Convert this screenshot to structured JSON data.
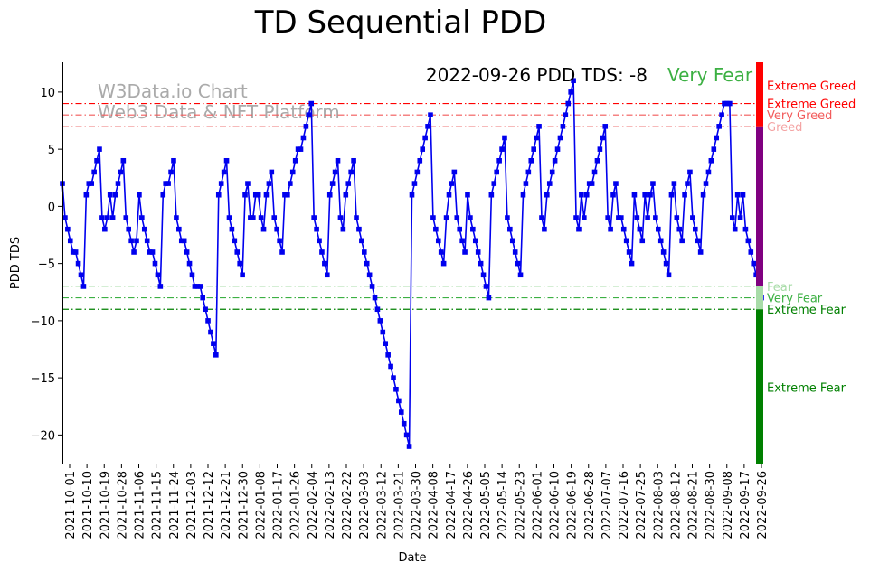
{
  "chart_data": {
    "type": "line",
    "title": "TD Sequential PDD",
    "xlabel": "Date",
    "ylabel": "PDD TDS",
    "ylim": [
      -22.5,
      12.6
    ],
    "yticks": [
      10,
      5,
      0,
      -5,
      -10,
      -15,
      -20
    ],
    "xticks": [
      "2021-10-01",
      "2021-10-10",
      "2021-10-19",
      "2021-10-28",
      "2021-11-06",
      "2021-11-15",
      "2021-11-24",
      "2021-12-03",
      "2021-12-12",
      "2021-12-21",
      "2021-12-30",
      "2022-01-08",
      "2022-01-17",
      "2022-01-26",
      "2022-02-04",
      "2022-02-13",
      "2022-02-22",
      "2022-03-03",
      "2022-03-12",
      "2022-03-21",
      "2022-03-30",
      "2022-04-08",
      "2022-04-17",
      "2022-04-26",
      "2022-05-05",
      "2022-05-14",
      "2022-05-23",
      "2022-06-01",
      "2022-06-10",
      "2022-06-19",
      "2022-06-28",
      "2022-07-07",
      "2022-07-16",
      "2022-07-25",
      "2022-08-03",
      "2022-08-12",
      "2022-08-21",
      "2022-08-30",
      "2022-09-08",
      "2022-09-17",
      "2022-09-26"
    ],
    "annotation": "2022-09-26 PDD TDS: -8",
    "status_label": "Very Fear",
    "status_color": "#3cb043",
    "watermark": [
      "W3Data.io Chart",
      "Web3 Data & NFT Platform"
    ],
    "series": [
      {
        "color": "#0000ee",
        "marker": "square",
        "values": [
          2,
          -1,
          -2,
          -3,
          -4,
          -4,
          -5,
          -6,
          -7,
          1,
          2,
          2,
          3,
          4,
          5,
          -1,
          -2,
          -1,
          1,
          -1,
          1,
          2,
          3,
          4,
          -1,
          -2,
          -3,
          -4,
          -3,
          1,
          -1,
          -2,
          -3,
          -4,
          -4,
          -5,
          -6,
          -7,
          1,
          2,
          2,
          3,
          4,
          -1,
          -2,
          -3,
          -3,
          -4,
          -5,
          -6,
          -7,
          -7,
          -7,
          -8,
          -9,
          -10,
          -11,
          -12,
          -13,
          1,
          2,
          3,
          4,
          -1,
          -2,
          -3,
          -4,
          -5,
          -6,
          1,
          2,
          -1,
          -1,
          1,
          1,
          -1,
          -2,
          1,
          2,
          3,
          -1,
          -2,
          -3,
          -4,
          1,
          1,
          2,
          3,
          4,
          5,
          5,
          6,
          7,
          8,
          9,
          -1,
          -2,
          -3,
          -4,
          -5,
          -6,
          1,
          2,
          3,
          4,
          -1,
          -2,
          1,
          2,
          3,
          4,
          -1,
          -2,
          -3,
          -4,
          -5,
          -6,
          -7,
          -8,
          -9,
          -10,
          -11,
          -12,
          -13,
          -14,
          -15,
          -16,
          -17,
          -18,
          -19,
          -20,
          -21,
          1,
          2,
          3,
          4,
          5,
          6,
          7,
          8,
          -1,
          -2,
          -3,
          -4,
          -5,
          -1,
          1,
          2,
          3,
          -1,
          -2,
          -3,
          -4,
          1,
          -1,
          -2,
          -3,
          -4,
          -5,
          -6,
          -7,
          -8,
          1,
          2,
          3,
          4,
          5,
          6,
          -1,
          -2,
          -3,
          -4,
          -5,
          -6,
          1,
          2,
          3,
          4,
          5,
          6,
          7,
          -1,
          -2,
          1,
          2,
          3,
          4,
          5,
          6,
          7,
          8,
          9,
          10,
          11,
          -1,
          -2,
          1,
          -1,
          1,
          2,
          2,
          3,
          4,
          5,
          6,
          7,
          -1,
          -2,
          1,
          2,
          -1,
          -1,
          -2,
          -3,
          -4,
          -5,
          1,
          -1,
          -2,
          -3,
          1,
          -1,
          1,
          2,
          -1,
          -2,
          -3,
          -4,
          -5,
          -6,
          1,
          2,
          -1,
          -2,
          -3,
          1,
          2,
          3,
          -1,
          -2,
          -3,
          -4,
          1,
          2,
          3,
          4,
          5,
          6,
          7,
          8,
          9,
          9,
          9,
          -1,
          -2,
          1,
          -1,
          1,
          -2,
          -3,
          -4,
          -5,
          -6,
          -7,
          -8
        ]
      }
    ],
    "thresholds": [
      {
        "y": 9,
        "label": "Extreme Greed",
        "color": "#ff0000",
        "line_color": "#ff0000"
      },
      {
        "y": 8,
        "label": "Very Greed",
        "color": "#f25a5a",
        "line_color": "#f25a5a"
      },
      {
        "y": 7,
        "label": "Greed",
        "color": "#f4a3a3",
        "line_color": "#f4a3a3"
      },
      {
        "y": -7,
        "label": "Fear",
        "color": "#a8dca8",
        "line_color": "#a8dca8"
      },
      {
        "y": -8,
        "label": "Very Fear",
        "color": "#3cb043",
        "line_color": "#3cb043"
      },
      {
        "y": -9,
        "label": "Extreme Fear",
        "color": "#008000",
        "line_color": "#008000"
      }
    ],
    "side_bar": [
      {
        "from": 7,
        "to": 12.6,
        "color": "#ff0000"
      },
      {
        "from": -7,
        "to": 7,
        "color": "#800080"
      },
      {
        "from": -9,
        "to": -7,
        "color": "#a8dca8"
      },
      {
        "from": -22.5,
        "to": -9,
        "color": "#008000"
      }
    ],
    "side_labels": [
      {
        "y": 10.6,
        "label": "Extreme Greed",
        "color": "#ff0000"
      },
      {
        "y": -15.8,
        "label": "Extreme Fear",
        "color": "#008000"
      }
    ]
  }
}
